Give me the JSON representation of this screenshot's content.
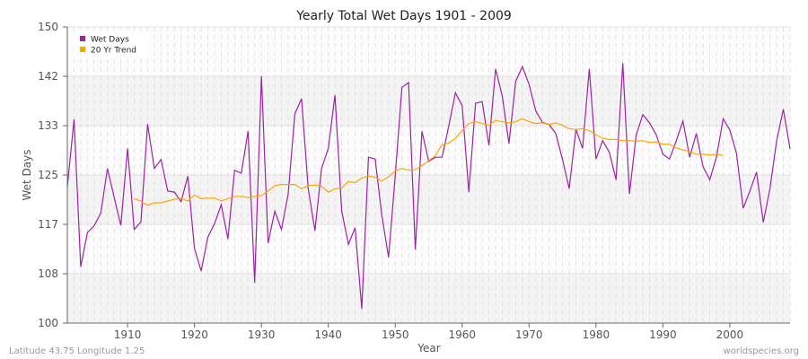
{
  "chart_data": {
    "type": "line",
    "title": "Yearly Total Wet Days 1901 - 2009",
    "xlabel": "Year",
    "ylabel": "Wet Days",
    "xlim": [
      1901,
      2009
    ],
    "ylim": [
      100,
      150
    ],
    "yticks": [
      100,
      108,
      117,
      125,
      133,
      142,
      150
    ],
    "ytick_values": [
      100,
      108.33,
      116.67,
      125,
      133.33,
      141.67,
      150
    ],
    "xticks": [
      1910,
      1920,
      1930,
      1940,
      1950,
      1960,
      1970,
      1980,
      1990,
      2000
    ],
    "grid": true,
    "legend_position": "top-left",
    "series": [
      {
        "name": "Wet Days",
        "color": "#a020a8",
        "start_year": 1901,
        "values": [
          123.0,
          134.4,
          109.5,
          115.3,
          116.4,
          118.6,
          126.1,
          121.2,
          116.5,
          129.5,
          115.8,
          117.1,
          133.6,
          126.1,
          127.6,
          122.3,
          122.1,
          120.5,
          124.8,
          112.6,
          108.8,
          114.5,
          116.8,
          120.0,
          114.2,
          125.8,
          125.3,
          132.4,
          106.8,
          141.7,
          113.5,
          118.9,
          115.8,
          121.8,
          135.3,
          137.9,
          122.7,
          115.6,
          126.1,
          129.5,
          138.5,
          118.9,
          113.3,
          116.1,
          102.4,
          128.0,
          127.7,
          118.2,
          111.1,
          124.8,
          139.8,
          140.6,
          112.4,
          132.4,
          127.3,
          128.0,
          128.0,
          133.3,
          138.9,
          136.7,
          122.1,
          137.1,
          137.4,
          130.0,
          142.9,
          138.3,
          130.3,
          140.8,
          143.3,
          140.3,
          135.8,
          133.9,
          133.5,
          132.0,
          127.6,
          122.7,
          132.7,
          129.5,
          142.9,
          127.7,
          130.8,
          128.8,
          124.2,
          143.9,
          121.8,
          131.7,
          135.2,
          133.8,
          131.8,
          128.5,
          127.7,
          130.8,
          134.1,
          128.0,
          132.0,
          126.4,
          124.2,
          128.0,
          134.5,
          132.6,
          128.6,
          119.4,
          122.3,
          125.5,
          117.0,
          122.7,
          130.8,
          136.1,
          129.4
        ]
      },
      {
        "name": "20 Yr Trend",
        "color": "#ffa500",
        "start_year": 1911,
        "values": [
          121.0,
          120.6,
          119.9,
          120.3,
          120.3,
          120.6,
          120.9,
          121.1,
          120.6,
          121.6,
          121.0,
          121.1,
          121.1,
          120.6,
          121.0,
          121.4,
          121.4,
          121.2,
          121.4,
          121.5,
          122.3,
          123.2,
          123.4,
          123.4,
          123.4,
          122.7,
          123.2,
          123.3,
          123.1,
          122.1,
          122.7,
          122.8,
          123.9,
          123.7,
          124.5,
          124.8,
          124.6,
          124.0,
          124.7,
          125.7,
          126.1,
          125.8,
          125.9,
          126.6,
          127.4,
          128.3,
          130.1,
          130.4,
          131.2,
          132.5,
          133.7,
          134.0,
          133.7,
          133.4,
          134.2,
          134.0,
          133.8,
          134.0,
          134.5,
          134.0,
          133.7,
          133.8,
          133.5,
          133.8,
          133.4,
          132.8,
          132.7,
          132.8,
          132.5,
          131.8,
          131.2,
          131.0,
          131.0,
          130.8,
          130.8,
          130.7,
          130.8,
          130.5,
          130.6,
          130.2,
          130.2,
          129.6,
          129.2,
          129.0,
          128.5,
          128.5,
          128.4,
          128.5,
          128.3
        ]
      }
    ]
  },
  "footer": {
    "location": "Latitude 43.75 Longitude 1.25",
    "source": "worldspecies.org"
  }
}
